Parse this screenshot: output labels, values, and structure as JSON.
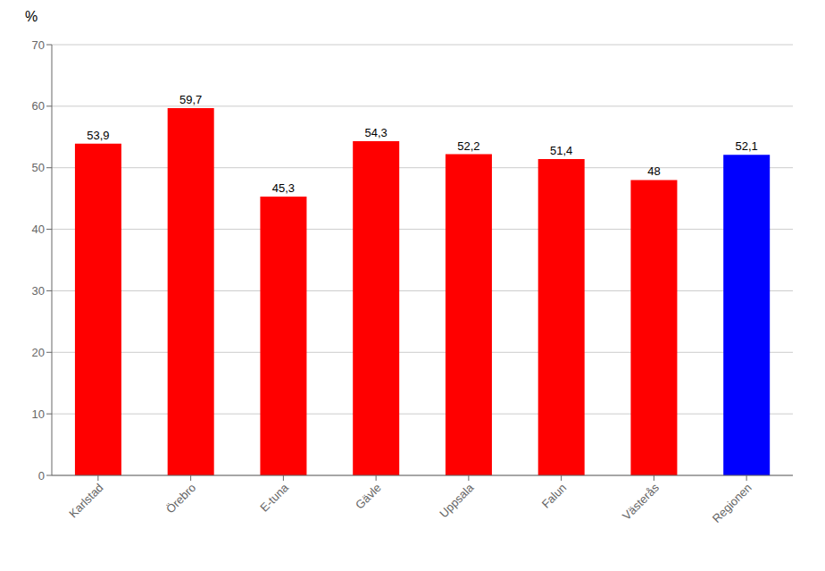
{
  "chart_data": {
    "type": "bar",
    "ylabel": "%",
    "categories": [
      "Karlstad",
      "Örebro",
      "E-tuna",
      "Gävle",
      "Uppsala",
      "Falun",
      "Västerås",
      "Regionen"
    ],
    "values": [
      53.9,
      59.7,
      45.3,
      54.3,
      52.2,
      51.4,
      48.0,
      52.1
    ],
    "value_labels": [
      "53,9",
      "59,7",
      "45,3",
      "54,3",
      "52,2",
      "51,4",
      "48",
      "52,1"
    ],
    "colors": [
      "#ff0000",
      "#ff0000",
      "#ff0000",
      "#ff0000",
      "#ff0000",
      "#ff0000",
      "#ff0000",
      "#0000ff"
    ],
    "ylim": [
      0,
      70
    ],
    "yticks": [
      0,
      10,
      20,
      30,
      40,
      50,
      60,
      70
    ],
    "grid": true,
    "data_labels": true
  }
}
